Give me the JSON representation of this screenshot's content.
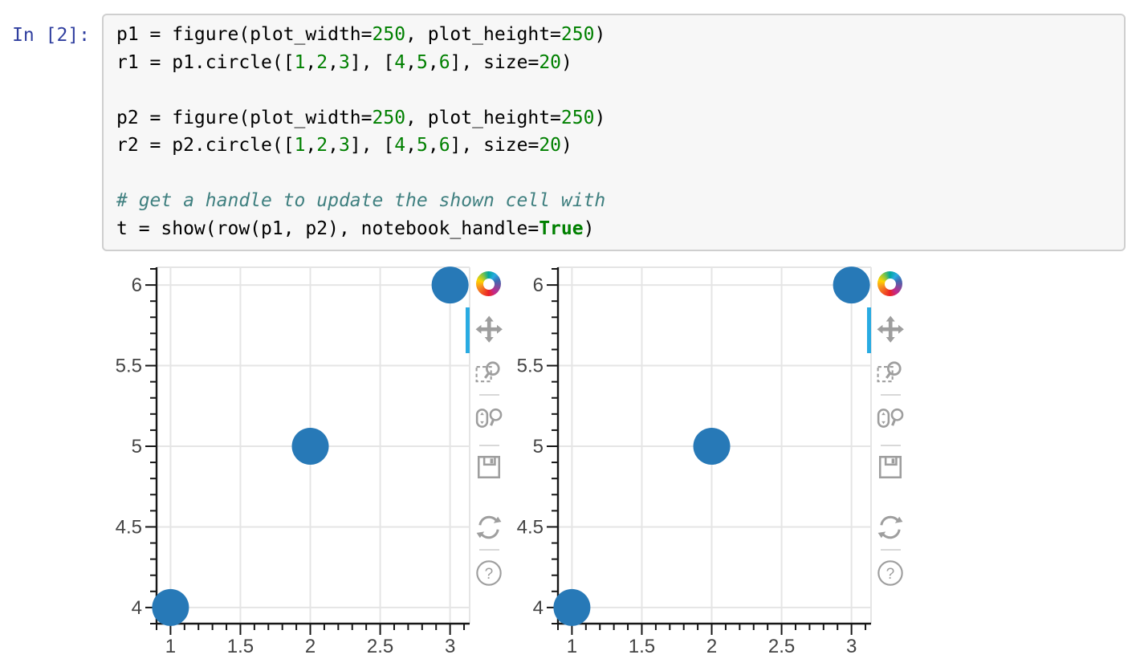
{
  "cell": {
    "prompt": "In [2]:",
    "code_lines": [
      [
        {
          "t": "p1 = figure(plot_width="
        },
        {
          "t": "250",
          "c": "num"
        },
        {
          "t": ", plot_height="
        },
        {
          "t": "250",
          "c": "num"
        },
        {
          "t": ")"
        }
      ],
      [
        {
          "t": "r1 = p1.circle(["
        },
        {
          "t": "1",
          "c": "num"
        },
        {
          "t": ","
        },
        {
          "t": "2",
          "c": "num"
        },
        {
          "t": ","
        },
        {
          "t": "3",
          "c": "num"
        },
        {
          "t": "], ["
        },
        {
          "t": "4",
          "c": "num"
        },
        {
          "t": ","
        },
        {
          "t": "5",
          "c": "num"
        },
        {
          "t": ","
        },
        {
          "t": "6",
          "c": "num"
        },
        {
          "t": "], size="
        },
        {
          "t": "20",
          "c": "num"
        },
        {
          "t": ")"
        }
      ],
      [],
      [
        {
          "t": "p2 = figure(plot_width="
        },
        {
          "t": "250",
          "c": "num"
        },
        {
          "t": ", plot_height="
        },
        {
          "t": "250",
          "c": "num"
        },
        {
          "t": ")"
        }
      ],
      [
        {
          "t": "r2 = p2.circle(["
        },
        {
          "t": "1",
          "c": "num"
        },
        {
          "t": ","
        },
        {
          "t": "2",
          "c": "num"
        },
        {
          "t": ","
        },
        {
          "t": "3",
          "c": "num"
        },
        {
          "t": "], ["
        },
        {
          "t": "4",
          "c": "num"
        },
        {
          "t": ","
        },
        {
          "t": "5",
          "c": "num"
        },
        {
          "t": ","
        },
        {
          "t": "6",
          "c": "num"
        },
        {
          "t": "], size="
        },
        {
          "t": "20",
          "c": "num"
        },
        {
          "t": ")"
        }
      ],
      [],
      [
        {
          "t": "# get a handle to update the shown cell with",
          "c": "comment"
        }
      ],
      [
        {
          "t": "t = show(row(p1, p2), notebook_handle="
        },
        {
          "t": "True",
          "c": "keyword"
        },
        {
          "t": ")"
        }
      ]
    ]
  },
  "chart_data": [
    {
      "type": "scatter",
      "title": "",
      "xlabel": "",
      "ylabel": "",
      "x": [
        1,
        2,
        3
      ],
      "y": [
        4,
        5,
        6
      ],
      "marker": "circle",
      "marker_size_px": 20,
      "marker_color": "#2779b7",
      "x_major_ticks": [
        1,
        1.5,
        2,
        2.5,
        3
      ],
      "x_tick_labels": [
        "1",
        "1.5",
        "2",
        "2.5",
        "3"
      ],
      "y_major_ticks": [
        4,
        4.5,
        5,
        5.5,
        6
      ],
      "y_tick_labels": [
        "4",
        "4.5",
        "5",
        "5.5",
        "6"
      ],
      "x_range": [
        0.9,
        3.14
      ],
      "y_range": [
        3.9,
        6.11
      ],
      "minor_tick_step": 0.1,
      "grid": true,
      "legend": "none"
    },
    {
      "type": "scatter",
      "title": "",
      "xlabel": "",
      "ylabel": "",
      "x": [
        1,
        2,
        3
      ],
      "y": [
        4,
        5,
        6
      ],
      "marker": "circle",
      "marker_size_px": 20,
      "marker_color": "#2779b7",
      "x_major_ticks": [
        1,
        1.5,
        2,
        2.5,
        3
      ],
      "x_tick_labels": [
        "1",
        "1.5",
        "2",
        "2.5",
        "3"
      ],
      "y_major_ticks": [
        4,
        4.5,
        5,
        5.5,
        6
      ],
      "y_tick_labels": [
        "4",
        "4.5",
        "5",
        "5.5",
        "6"
      ],
      "x_range": [
        0.9,
        3.14
      ],
      "y_range": [
        3.9,
        6.11
      ],
      "minor_tick_step": 0.1,
      "grid": true,
      "legend": "none"
    }
  ],
  "toolbar": {
    "logo": "bokeh-logo",
    "tools": [
      {
        "name": "pan",
        "icon": "pan-icon",
        "active": true
      },
      {
        "name": "box-zoom",
        "icon": "box-zoom-icon",
        "active": false
      },
      {
        "name": "wheel-zoom",
        "icon": "wheel-zoom-icon",
        "active": false
      },
      {
        "name": "save",
        "icon": "save-icon",
        "active": false
      },
      {
        "name": "reset",
        "icon": "reset-icon",
        "active": false
      },
      {
        "name": "help",
        "icon": "help-icon",
        "active": false
      }
    ],
    "separators_after": [
      "box-zoom",
      "wheel-zoom",
      "reset"
    ],
    "help_glyph": "?"
  },
  "colors": {
    "marker": "#2779b7",
    "active_tool_indicator": "#29ABE2",
    "grid": "#e5e5e5",
    "frame_outline": "#e5e5e5",
    "axis": "#161616",
    "tick_label": "#444444",
    "icon": "#9e9e9e",
    "cell_bg": "#f7f7f7",
    "cell_border": "#cfcfcf",
    "prompt": "#303F9F",
    "number": "#008000",
    "comment": "#408080",
    "keyword": "#008000"
  }
}
